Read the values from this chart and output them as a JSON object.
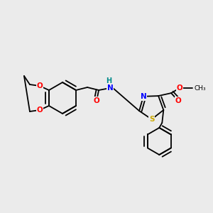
{
  "bg_color": "#ebebeb",
  "bond_color": "#000000",
  "atom_colors": {
    "O": "#ff0000",
    "N": "#0000ff",
    "S": "#ccaa00",
    "H": "#008b8b"
  },
  "figsize": [
    3.0,
    3.0
  ],
  "dpi": 100
}
